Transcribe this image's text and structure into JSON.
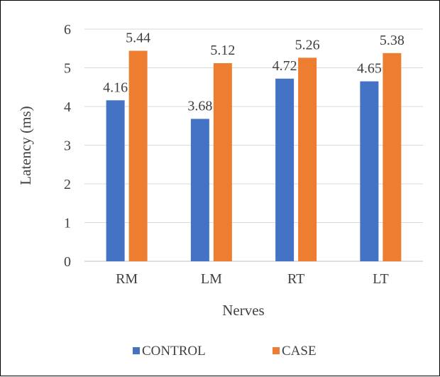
{
  "chart_data": {
    "type": "bar",
    "categories": [
      "RM",
      "LM",
      "RT",
      "LT"
    ],
    "series": [
      {
        "name": "CONTROL",
        "values": [
          4.16,
          3.68,
          4.72,
          4.65
        ],
        "color": "#4472C4"
      },
      {
        "name": "CASE",
        "values": [
          5.44,
          5.12,
          5.26,
          5.38
        ],
        "color": "#ED7D31"
      }
    ],
    "data_labels": [
      [
        "4.16",
        "3.68",
        "4.72",
        "4.65"
      ],
      [
        "5.44",
        "5.12",
        "5.26",
        "5.38"
      ]
    ],
    "xlabel": "Nerves",
    "ylabel": "Latency (ms)",
    "ylim": [
      0,
      6
    ],
    "yticks": [
      "0",
      "1",
      "2",
      "3",
      "4",
      "5",
      "6"
    ],
    "grid": true,
    "legend_position": "bottom"
  }
}
